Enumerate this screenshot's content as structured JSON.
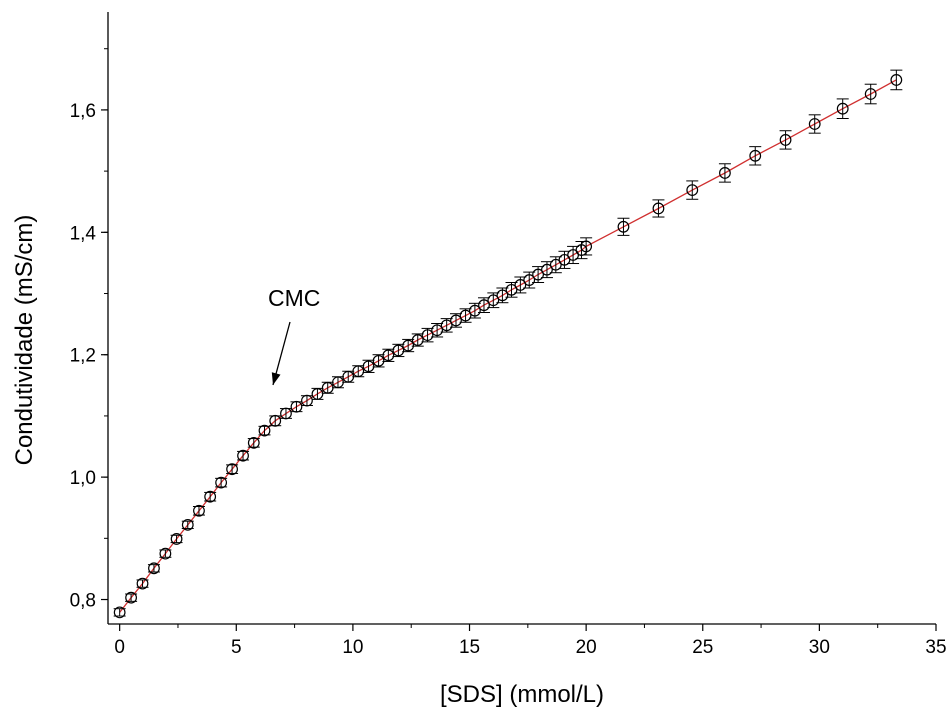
{
  "chart_data": {
    "type": "scatter",
    "title": "",
    "xlabel": "[SDS] (mmol/L)",
    "ylabel": "Condutividade (mS/cm)",
    "xlim": [
      -0.5,
      35
    ],
    "ylim": [
      0.76,
      1.76
    ],
    "x_ticks": [
      0,
      5,
      10,
      15,
      20,
      25,
      30,
      35
    ],
    "x_tick_labels": [
      "0",
      "5",
      "10",
      "15",
      "20",
      "25",
      "30",
      "35"
    ],
    "y_ticks": [
      0.8,
      1.0,
      1.2,
      1.4,
      1.6
    ],
    "y_tick_labels": [
      "0,8",
      "1,0",
      "1,2",
      "1,4",
      "1,6"
    ],
    "grid": false,
    "marker": "open-circle",
    "marker_color": "#000000",
    "line_color": "#d03030",
    "series": [
      {
        "x": [
          0,
          0.49,
          0.98,
          1.47,
          1.96,
          2.44,
          2.92,
          3.4,
          3.88,
          4.35,
          4.82,
          5.29,
          5.75,
          6.21,
          6.67,
          7.13,
          7.58,
          8.03,
          8.48,
          8.92,
          9.36,
          9.8,
          10.23,
          10.67,
          11.1,
          11.52,
          11.95,
          12.37,
          12.78,
          13.2,
          13.61,
          14.02,
          14.42,
          14.83,
          15.23,
          15.62,
          16.02,
          16.41,
          16.8,
          17.18,
          17.56,
          17.94,
          18.32,
          18.7,
          19.07,
          19.44,
          19.8,
          20.0,
          21.6,
          23.1,
          24.55,
          25.95,
          27.25,
          28.55,
          29.8,
          31.0,
          32.2,
          33.3
        ],
        "y": [
          0.779,
          0.803,
          0.826,
          0.851,
          0.875,
          0.899,
          0.922,
          0.945,
          0.968,
          0.991,
          1.013,
          1.035,
          1.056,
          1.076,
          1.092,
          1.104,
          1.115,
          1.125,
          1.136,
          1.146,
          1.155,
          1.164,
          1.173,
          1.181,
          1.19,
          1.199,
          1.207,
          1.215,
          1.224,
          1.232,
          1.24,
          1.248,
          1.256,
          1.264,
          1.272,
          1.281,
          1.289,
          1.297,
          1.306,
          1.314,
          1.322,
          1.331,
          1.339,
          1.347,
          1.355,
          1.363,
          1.371,
          1.377,
          1.409,
          1.439,
          1.469,
          1.497,
          1.525,
          1.551,
          1.577,
          1.602,
          1.626,
          1.649
        ],
        "err": [
          0.006,
          0.006,
          0.006,
          0.006,
          0.006,
          0.006,
          0.006,
          0.007,
          0.007,
          0.007,
          0.007,
          0.007,
          0.007,
          0.007,
          0.008,
          0.008,
          0.008,
          0.008,
          0.009,
          0.009,
          0.009,
          0.009,
          0.009,
          0.01,
          0.01,
          0.01,
          0.01,
          0.01,
          0.01,
          0.011,
          0.011,
          0.011,
          0.011,
          0.011,
          0.012,
          0.012,
          0.012,
          0.012,
          0.012,
          0.013,
          0.013,
          0.013,
          0.013,
          0.013,
          0.014,
          0.014,
          0.014,
          0.014,
          0.014,
          0.014,
          0.015,
          0.015,
          0.015,
          0.015,
          0.015,
          0.016,
          0.016,
          0.016
        ]
      }
    ],
    "annotations": [
      {
        "text": "CMC",
        "arrow_to": [
          6.5,
          1.124
        ]
      }
    ]
  }
}
